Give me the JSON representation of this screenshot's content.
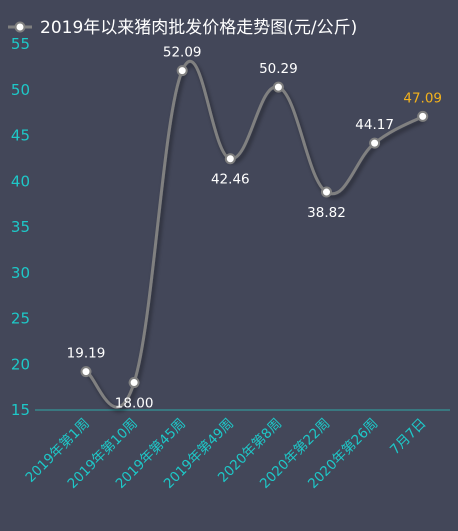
{
  "chart_data": {
    "type": "line",
    "title": "2019年以来猪肉批发价格走势图(元/公斤)",
    "categories": [
      "2019年第1周",
      "2019年第10周",
      "2019年第45周",
      "2019年第49周",
      "2020年第8周",
      "2020年第22周",
      "2020年第26周",
      "7月7日"
    ],
    "series": [
      {
        "name": "2019年以来猪肉批发价格走势图(元/公斤)",
        "values": [
          19.19,
          18.0,
          52.09,
          42.46,
          50.29,
          38.82,
          44.17,
          47.09
        ]
      }
    ],
    "data_labels": [
      "19.19",
      "18.00",
      "52.09",
      "42.46",
      "50.29",
      "38.82",
      "44.17",
      "47.09"
    ],
    "yticks": [
      "15",
      "20",
      "25",
      "30",
      "35",
      "40",
      "45",
      "50",
      "55"
    ],
    "ylim": [
      15,
      55
    ],
    "xlabel": "",
    "ylabel": "",
    "grid": false,
    "legend_position": "top-left",
    "colors": {
      "background": "#434759",
      "line": "#808080",
      "axis_text": "#1ec8c8",
      "axis_line": "#2fa8a8",
      "label": "#ffffff",
      "highlight_label": "#f3b21c",
      "marker_fill": "#ffffff"
    }
  }
}
